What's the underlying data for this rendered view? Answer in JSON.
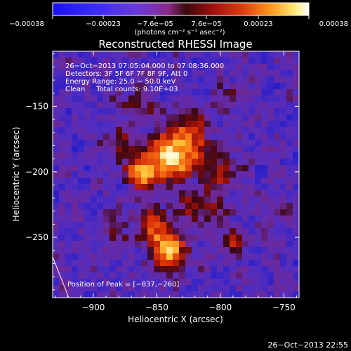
{
  "chart_data": {
    "type": "heatmap",
    "title": "Reconstructed RHESSI Image",
    "xlabel": "Heliocentric X (arcsec)",
    "ylabel": "Heliocentric Y (arcsec)",
    "xlim": [
      -932,
      -738
    ],
    "ylim": [
      -296,
      -108
    ],
    "x_ticks": [
      -900,
      -850,
      -800,
      -750
    ],
    "y_ticks": [
      -150,
      -200,
      -250
    ],
    "x_tick_labels": [
      "−900",
      "−850",
      "−800",
      "−750"
    ],
    "y_tick_labels": [
      "−150",
      "−200",
      "−250"
    ],
    "colorbar": {
      "range": [
        -0.00038,
        0.00038
      ],
      "ticks": [
        -0.00038,
        -0.00023,
        -7.6e-05,
        7.6e-05,
        0.00023,
        0.00038
      ],
      "tick_labels": [
        "−0.00038",
        "−0.00023",
        "−7.6e−05",
        "7.6e−05",
        "0.00023",
        "0.00038"
      ],
      "unit_label": "(photons cm⁻² s⁻¹ asec⁻²)"
    },
    "annotations": [
      "26−Oct−2013 07:05:04.000 to 07:08:36.000",
      "Detectors: 3F 5F 6F 7F 8F 9F, Att 0",
      "Energy Range: 25.0 − 50.0 keV",
      "Clean     Total counts: 9.10E+03"
    ],
    "peak_label": "Position of Peak = [−837,−260]",
    "peak_position": [
      -837,
      -260
    ],
    "sources": [
      {
        "x": -840,
        "y": -190,
        "sx": 14,
        "sy": 11,
        "amp": 1.0
      },
      {
        "x": -862,
        "y": -202,
        "sx": 8,
        "sy": 7,
        "amp": 0.8
      },
      {
        "x": -840,
        "y": -258,
        "sx": 9,
        "sy": 10,
        "amp": 0.95
      },
      {
        "x": -855,
        "y": -240,
        "sx": 8,
        "sy": 12,
        "amp": 0.55
      },
      {
        "x": -815,
        "y": -228,
        "sx": 12,
        "sy": 9,
        "amp": 0.45
      },
      {
        "x": -825,
        "y": -172,
        "sx": 11,
        "sy": 12,
        "amp": 0.55
      },
      {
        "x": -800,
        "y": -200,
        "sx": 10,
        "sy": 10,
        "amp": 0.4
      },
      {
        "x": -880,
        "y": -180,
        "sx": 9,
        "sy": 9,
        "amp": 0.35
      },
      {
        "x": -885,
        "y": -245,
        "sx": 7,
        "sy": 10,
        "amp": 0.3
      },
      {
        "x": -865,
        "y": -150,
        "sx": 10,
        "sy": 8,
        "amp": 0.3
      },
      {
        "x": -790,
        "y": -255,
        "sx": 8,
        "sy": 8,
        "amp": 0.35
      },
      {
        "x": -760,
        "y": -230,
        "sx": 9,
        "sy": 9,
        "amp": 0.2
      },
      {
        "x": -795,
        "y": -140,
        "sx": 8,
        "sy": 8,
        "amp": 0.2
      }
    ],
    "grid": false,
    "legend": "none"
  },
  "timestamp": "26−Oct−2013 22:55"
}
